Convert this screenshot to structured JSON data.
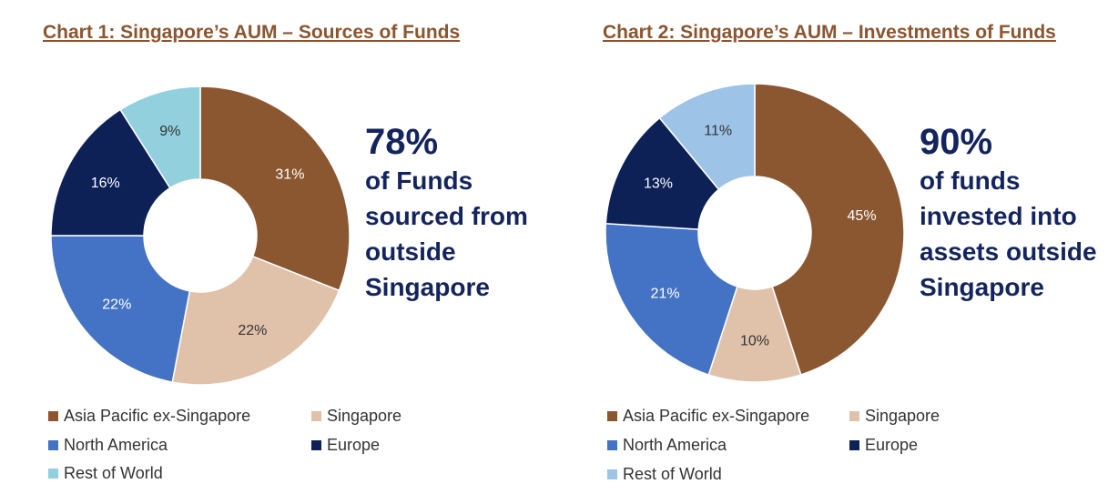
{
  "colors": {
    "asia_pacific": "#8b5730",
    "singapore": "#e0c1aa",
    "north_america": "#4472c4",
    "europe": "#0d2157",
    "rest_of_world_1": "#92d0de",
    "rest_of_world_2": "#9dc3e6",
    "title": "#8a5530",
    "callout": "#13245e"
  },
  "chart_data": [
    {
      "type": "pie",
      "title": "Chart 1: Singapore’s AUM – Sources of Funds",
      "categories": [
        "Asia Pacific ex-Singapore",
        "Singapore",
        "North America",
        "Europe",
        "Rest of World"
      ],
      "values": [
        31,
        22,
        22,
        16,
        9
      ],
      "value_labels": [
        "31%",
        "22%",
        "22%",
        "16%",
        "9%"
      ],
      "colors": [
        "#8b5730",
        "#e0c1aa",
        "#4472c4",
        "#0d2157",
        "#92d0de"
      ],
      "label_colors": [
        "#ffffff",
        "#333333",
        "#ffffff",
        "#ffffff",
        "#333333"
      ],
      "legend_placement": "bottom",
      "callout": {
        "figure": "78%",
        "lines": [
          "of Funds",
          "sourced from",
          "outside",
          "Singapore"
        ]
      }
    },
    {
      "type": "pie",
      "title": "Chart 2: Singapore’s AUM – Investments of Funds",
      "categories": [
        "Asia Pacific ex-Singapore",
        "Singapore",
        "North America",
        "Europe",
        "Rest of World"
      ],
      "values": [
        45,
        10,
        21,
        13,
        11
      ],
      "value_labels": [
        "45%",
        "10%",
        "21%",
        "13%",
        "11%"
      ],
      "colors": [
        "#8b5730",
        "#e0c1aa",
        "#4472c4",
        "#0d2157",
        "#9dc3e6"
      ],
      "label_colors": [
        "#ffffff",
        "#333333",
        "#ffffff",
        "#ffffff",
        "#333333"
      ],
      "legend_placement": "bottom",
      "callout": {
        "figure": "90%",
        "lines": [
          "of funds",
          "invested into",
          "assets outside",
          "Singapore"
        ]
      }
    }
  ]
}
